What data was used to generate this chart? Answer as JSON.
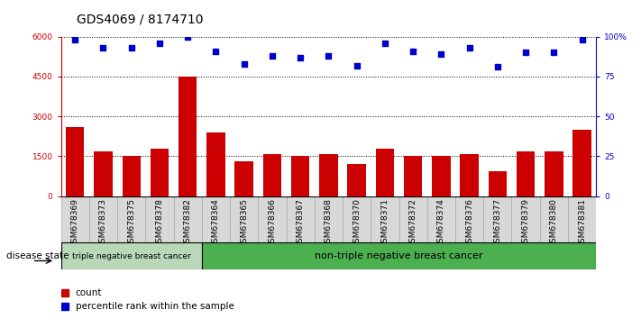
{
  "title": "GDS4069 / 8174710",
  "samples": [
    "GSM678369",
    "GSM678373",
    "GSM678375",
    "GSM678378",
    "GSM678382",
    "GSM678364",
    "GSM678365",
    "GSM678366",
    "GSM678367",
    "GSM678368",
    "GSM678370",
    "GSM678371",
    "GSM678372",
    "GSM678374",
    "GSM678376",
    "GSM678377",
    "GSM678379",
    "GSM678380",
    "GSM678381"
  ],
  "counts": [
    2600,
    1700,
    1500,
    1800,
    4500,
    2400,
    1300,
    1600,
    1500,
    1600,
    1200,
    1800,
    1500,
    1500,
    1600,
    950,
    1700,
    1700,
    2500
  ],
  "percentiles": [
    98,
    93,
    93,
    96,
    100,
    91,
    83,
    88,
    87,
    88,
    82,
    96,
    91,
    89,
    93,
    81,
    90,
    90,
    98
  ],
  "bar_color": "#cc0000",
  "dot_color": "#0000cc",
  "group1_count": 5,
  "group1_label": "triple negative breast cancer",
  "group2_label": "non-triple negative breast cancer",
  "group1_color": "#b8d8b8",
  "group2_color": "#4caf50",
  "disease_state_label": "disease state",
  "legend_count_label": "count",
  "legend_pct_label": "percentile rank within the sample",
  "ylim_left": [
    0,
    6000
  ],
  "ylim_right": [
    0,
    100
  ],
  "yticks_left": [
    0,
    1500,
    3000,
    4500,
    6000
  ],
  "yticks_right": [
    0,
    25,
    50,
    75,
    100
  ],
  "ytick_labels_right": [
    "0",
    "25",
    "50",
    "75",
    "100%"
  ],
  "bg_color": "#ffffff",
  "plot_bg_color": "#ffffff",
  "tick_bg_color": "#d8d8d8",
  "title_fontsize": 10,
  "tick_fontsize": 6.5,
  "label_fontsize": 8
}
